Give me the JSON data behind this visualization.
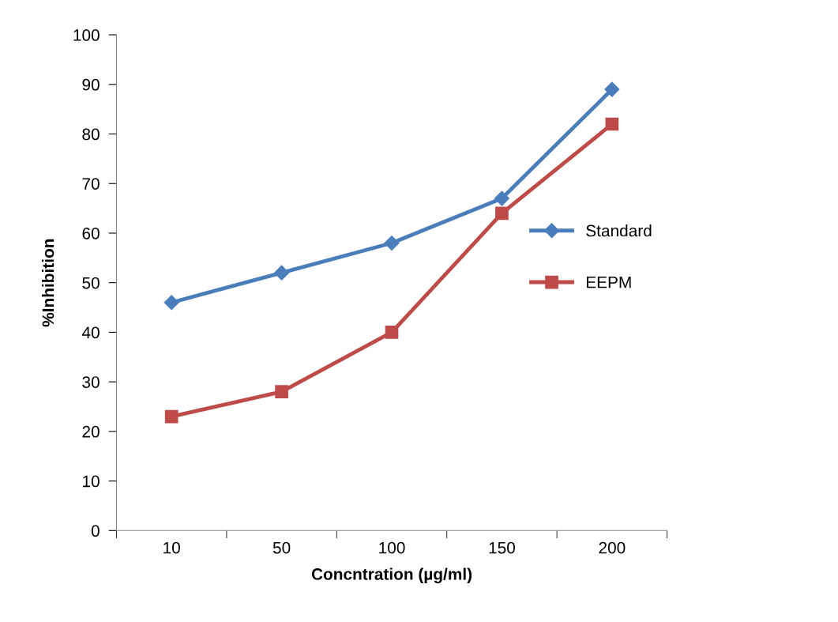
{
  "chart_data": {
    "type": "line",
    "xlabel": "Concntration (µg/ml)",
    "ylabel": "%Inhibition",
    "categories": [
      "10",
      "50",
      "100",
      "150",
      "200"
    ],
    "series": [
      {
        "name": "Standard",
        "color": "#4a7ebb",
        "marker": "diamond",
        "values": [
          46,
          52,
          58,
          67,
          89
        ]
      },
      {
        "name": "EEPM",
        "color": "#be4b48",
        "marker": "square",
        "values": [
          23,
          28,
          40,
          64,
          82
        ]
      }
    ],
    "ylim": [
      0,
      100
    ],
    "yticks": [
      0,
      10,
      20,
      30,
      40,
      50,
      60,
      70,
      80,
      90,
      100
    ],
    "grid": false,
    "legend": "right",
    "line_style": "solid"
  }
}
